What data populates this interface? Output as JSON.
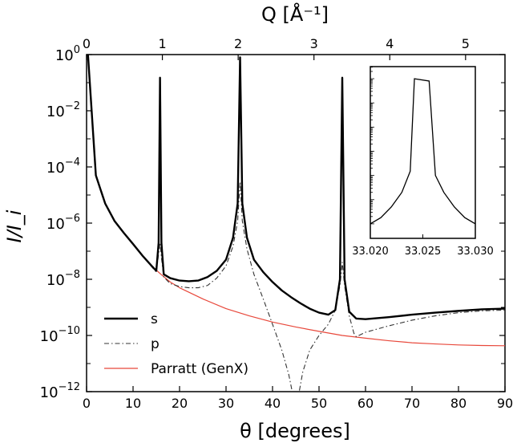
{
  "chart_data": {
    "type": "line",
    "xlabel": "θ [degrees]",
    "ylabel": "I/I_i",
    "top_xlabel": "Q [Å⁻¹]",
    "xlim": [
      0,
      90
    ],
    "ylim": [
      1e-12,
      1
    ],
    "yscale": "log",
    "x_ticks": [
      "0",
      "10",
      "20",
      "30",
      "40",
      "50",
      "60",
      "70",
      "80",
      "90"
    ],
    "y_ticks": [
      {
        "base": "10",
        "exp": "0"
      },
      {
        "base": "10",
        "exp": "−2"
      },
      {
        "base": "10",
        "exp": "−4"
      },
      {
        "base": "10",
        "exp": "−6"
      },
      {
        "base": "10",
        "exp": "−8"
      },
      {
        "base": "10",
        "exp": "−10"
      },
      {
        "base": "10",
        "exp": "−12"
      }
    ],
    "top_ticks": [
      "0",
      "1",
      "2",
      "3",
      "4",
      "5"
    ],
    "legend_position": "lower-left",
    "colors": {
      "s": "#000000",
      "p": "#333333",
      "parratt": "#e8483b"
    },
    "series": [
      {
        "name": "s",
        "style": "solid-thick",
        "points": [
          [
            0.3,
            1
          ],
          [
            2,
            5e-05
          ],
          [
            4,
            5e-06
          ],
          [
            6,
            1.2e-06
          ],
          [
            8,
            4.5e-07
          ],
          [
            10,
            1.8e-07
          ],
          [
            12,
            7e-08
          ],
          [
            14,
            3e-08
          ],
          [
            15,
            2e-08
          ],
          [
            15.5,
            2e-07
          ],
          [
            15.8,
            0.15
          ],
          [
            16.1,
            2e-07
          ],
          [
            16.6,
            1.5e-08
          ],
          [
            18,
            1.1e-08
          ],
          [
            20,
            9e-09
          ],
          [
            22,
            8.5e-09
          ],
          [
            24,
            9e-09
          ],
          [
            26,
            1.2e-08
          ],
          [
            28,
            2e-08
          ],
          [
            30,
            5e-08
          ],
          [
            31.5,
            3e-07
          ],
          [
            32.5,
            5e-06
          ],
          [
            33.02,
            0.8
          ],
          [
            33.5,
            5e-06
          ],
          [
            34.5,
            3e-07
          ],
          [
            36,
            5e-08
          ],
          [
            38,
            1.8e-08
          ],
          [
            40,
            8e-09
          ],
          [
            42,
            4e-09
          ],
          [
            44,
            2.3e-09
          ],
          [
            46,
            1.4e-09
          ],
          [
            48,
            9e-10
          ],
          [
            50,
            6.5e-10
          ],
          [
            52,
            5.5e-10
          ],
          [
            53.5,
            8e-10
          ],
          [
            54.5,
            1e-08
          ],
          [
            55,
            0.15
          ],
          [
            55.5,
            1e-08
          ],
          [
            56.5,
            7e-10
          ],
          [
            58,
            4e-10
          ],
          [
            60,
            3.8e-10
          ],
          [
            65,
            4.5e-10
          ],
          [
            70,
            5.5e-10
          ],
          [
            75,
            6.5e-10
          ],
          [
            80,
            7.5e-10
          ],
          [
            85,
            8.5e-10
          ],
          [
            90,
            9e-10
          ]
        ]
      },
      {
        "name": "p",
        "style": "dashdot",
        "points": [
          [
            0.3,
            1
          ],
          [
            2,
            5e-05
          ],
          [
            4,
            5e-06
          ],
          [
            6,
            1.2e-06
          ],
          [
            8,
            4.5e-07
          ],
          [
            10,
            1.8e-07
          ],
          [
            12,
            7e-08
          ],
          [
            14,
            2.8e-08
          ],
          [
            15,
            1.8e-08
          ],
          [
            15.5,
            8e-08
          ],
          [
            15.8,
            2e-07
          ],
          [
            16.1,
            6e-08
          ],
          [
            16.6,
            1.2e-08
          ],
          [
            18,
            7e-09
          ],
          [
            20,
            5.5e-09
          ],
          [
            22,
            5e-09
          ],
          [
            24,
            5e-09
          ],
          [
            26,
            6e-09
          ],
          [
            28,
            1.1e-08
          ],
          [
            30,
            3e-08
          ],
          [
            31.5,
            1.5e-07
          ],
          [
            32.5,
            1.2e-06
          ],
          [
            33.02,
            3e-05
          ],
          [
            33.5,
            1.2e-06
          ],
          [
            34.5,
            1.2e-07
          ],
          [
            36,
            1.5e-08
          ],
          [
            38,
            2e-09
          ],
          [
            40,
            2.5e-10
          ],
          [
            42,
            3e-11
          ],
          [
            43.5,
            4e-12
          ],
          [
            44.5,
            6e-13
          ],
          [
            45,
            1e-13
          ],
          [
            45.5,
            6e-13
          ],
          [
            46.5,
            5e-12
          ],
          [
            48,
            3e-11
          ],
          [
            50,
            1e-10
          ],
          [
            52,
            2.5e-10
          ],
          [
            53.5,
            8e-10
          ],
          [
            54.5,
            6e-09
          ],
          [
            55,
            4e-08
          ],
          [
            55.5,
            6e-09
          ],
          [
            56.5,
            5e-10
          ],
          [
            57.5,
            1.2e-10
          ],
          [
            58,
            9e-11
          ],
          [
            60,
            1.3e-10
          ],
          [
            65,
            2.2e-10
          ],
          [
            70,
            3.5e-10
          ],
          [
            75,
            5e-10
          ],
          [
            80,
            6.5e-10
          ],
          [
            85,
            7.5e-10
          ],
          [
            90,
            8e-10
          ]
        ]
      },
      {
        "name": "Parratt (GenX)",
        "style": "solid-thin",
        "points": [
          [
            0.3,
            1
          ],
          [
            2,
            5e-05
          ],
          [
            4,
            5e-06
          ],
          [
            6,
            1.2e-06
          ],
          [
            8,
            4.5e-07
          ],
          [
            10,
            1.8e-07
          ],
          [
            12,
            7e-08
          ],
          [
            14,
            3e-08
          ],
          [
            16,
            1.5e-08
          ],
          [
            18,
            8e-09
          ],
          [
            20,
            5e-09
          ],
          [
            25,
            2e-09
          ],
          [
            30,
            9e-10
          ],
          [
            35,
            5e-10
          ],
          [
            40,
            3e-10
          ],
          [
            45,
            2e-10
          ],
          [
            50,
            1.4e-10
          ],
          [
            55,
            1e-10
          ],
          [
            60,
            8e-11
          ],
          [
            65,
            6.5e-11
          ],
          [
            70,
            5.5e-11
          ],
          [
            75,
            5e-11
          ],
          [
            80,
            4.6e-11
          ],
          [
            85,
            4.4e-11
          ],
          [
            90,
            4.3e-11
          ]
        ]
      }
    ],
    "inset": {
      "type": "line",
      "scale": "log",
      "xlim": [
        33.02,
        33.03
      ],
      "x_ticks": [
        "33.020",
        "33.025",
        "33.030"
      ],
      "points": [
        [
          33.02,
          1e-06
        ],
        [
          33.021,
          1.8e-06
        ],
        [
          33.022,
          5e-06
        ],
        [
          33.023,
          2e-05
        ],
        [
          33.0238,
          0.00015
        ],
        [
          33.0242,
          1
        ],
        [
          33.0256,
          0.8
        ],
        [
          33.0262,
          0.0001
        ],
        [
          33.027,
          2e-05
        ],
        [
          33.028,
          5e-06
        ],
        [
          33.029,
          1.8e-06
        ],
        [
          33.03,
          1e-06
        ]
      ]
    }
  }
}
